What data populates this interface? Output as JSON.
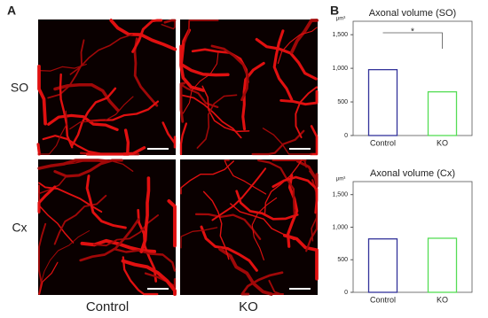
{
  "panel_a": {
    "label": "A",
    "rows": [
      "SO",
      "Cx"
    ],
    "columns": [
      "Control",
      "KO"
    ]
  },
  "panel_b": {
    "label": "B"
  },
  "chart_data": [
    {
      "type": "bar",
      "title": "Axonal volume (SO)",
      "y_label": "μm³",
      "categories": [
        "Control",
        "KO"
      ],
      "values": [
        980,
        650
      ],
      "colors": [
        "#33339a",
        "#55dd55"
      ],
      "ylim": [
        0,
        1700
      ],
      "yticks": [
        0,
        500,
        {
          "value": 1000,
          "label": "1,000"
        },
        {
          "value": 1500,
          "label": "1,500"
        }
      ],
      "annotation": "*"
    },
    {
      "type": "bar",
      "title": "Axonal volume (Cx)",
      "y_label": "μm³",
      "categories": [
        "Control",
        "KO"
      ],
      "values": [
        820,
        830
      ],
      "colors": [
        "#33339a",
        "#55dd55"
      ],
      "ylim": [
        0,
        1700
      ],
      "yticks": [
        0,
        500,
        {
          "value": 1000,
          "label": "1,000"
        },
        {
          "value": 1500,
          "label": "1,500"
        }
      ]
    }
  ]
}
